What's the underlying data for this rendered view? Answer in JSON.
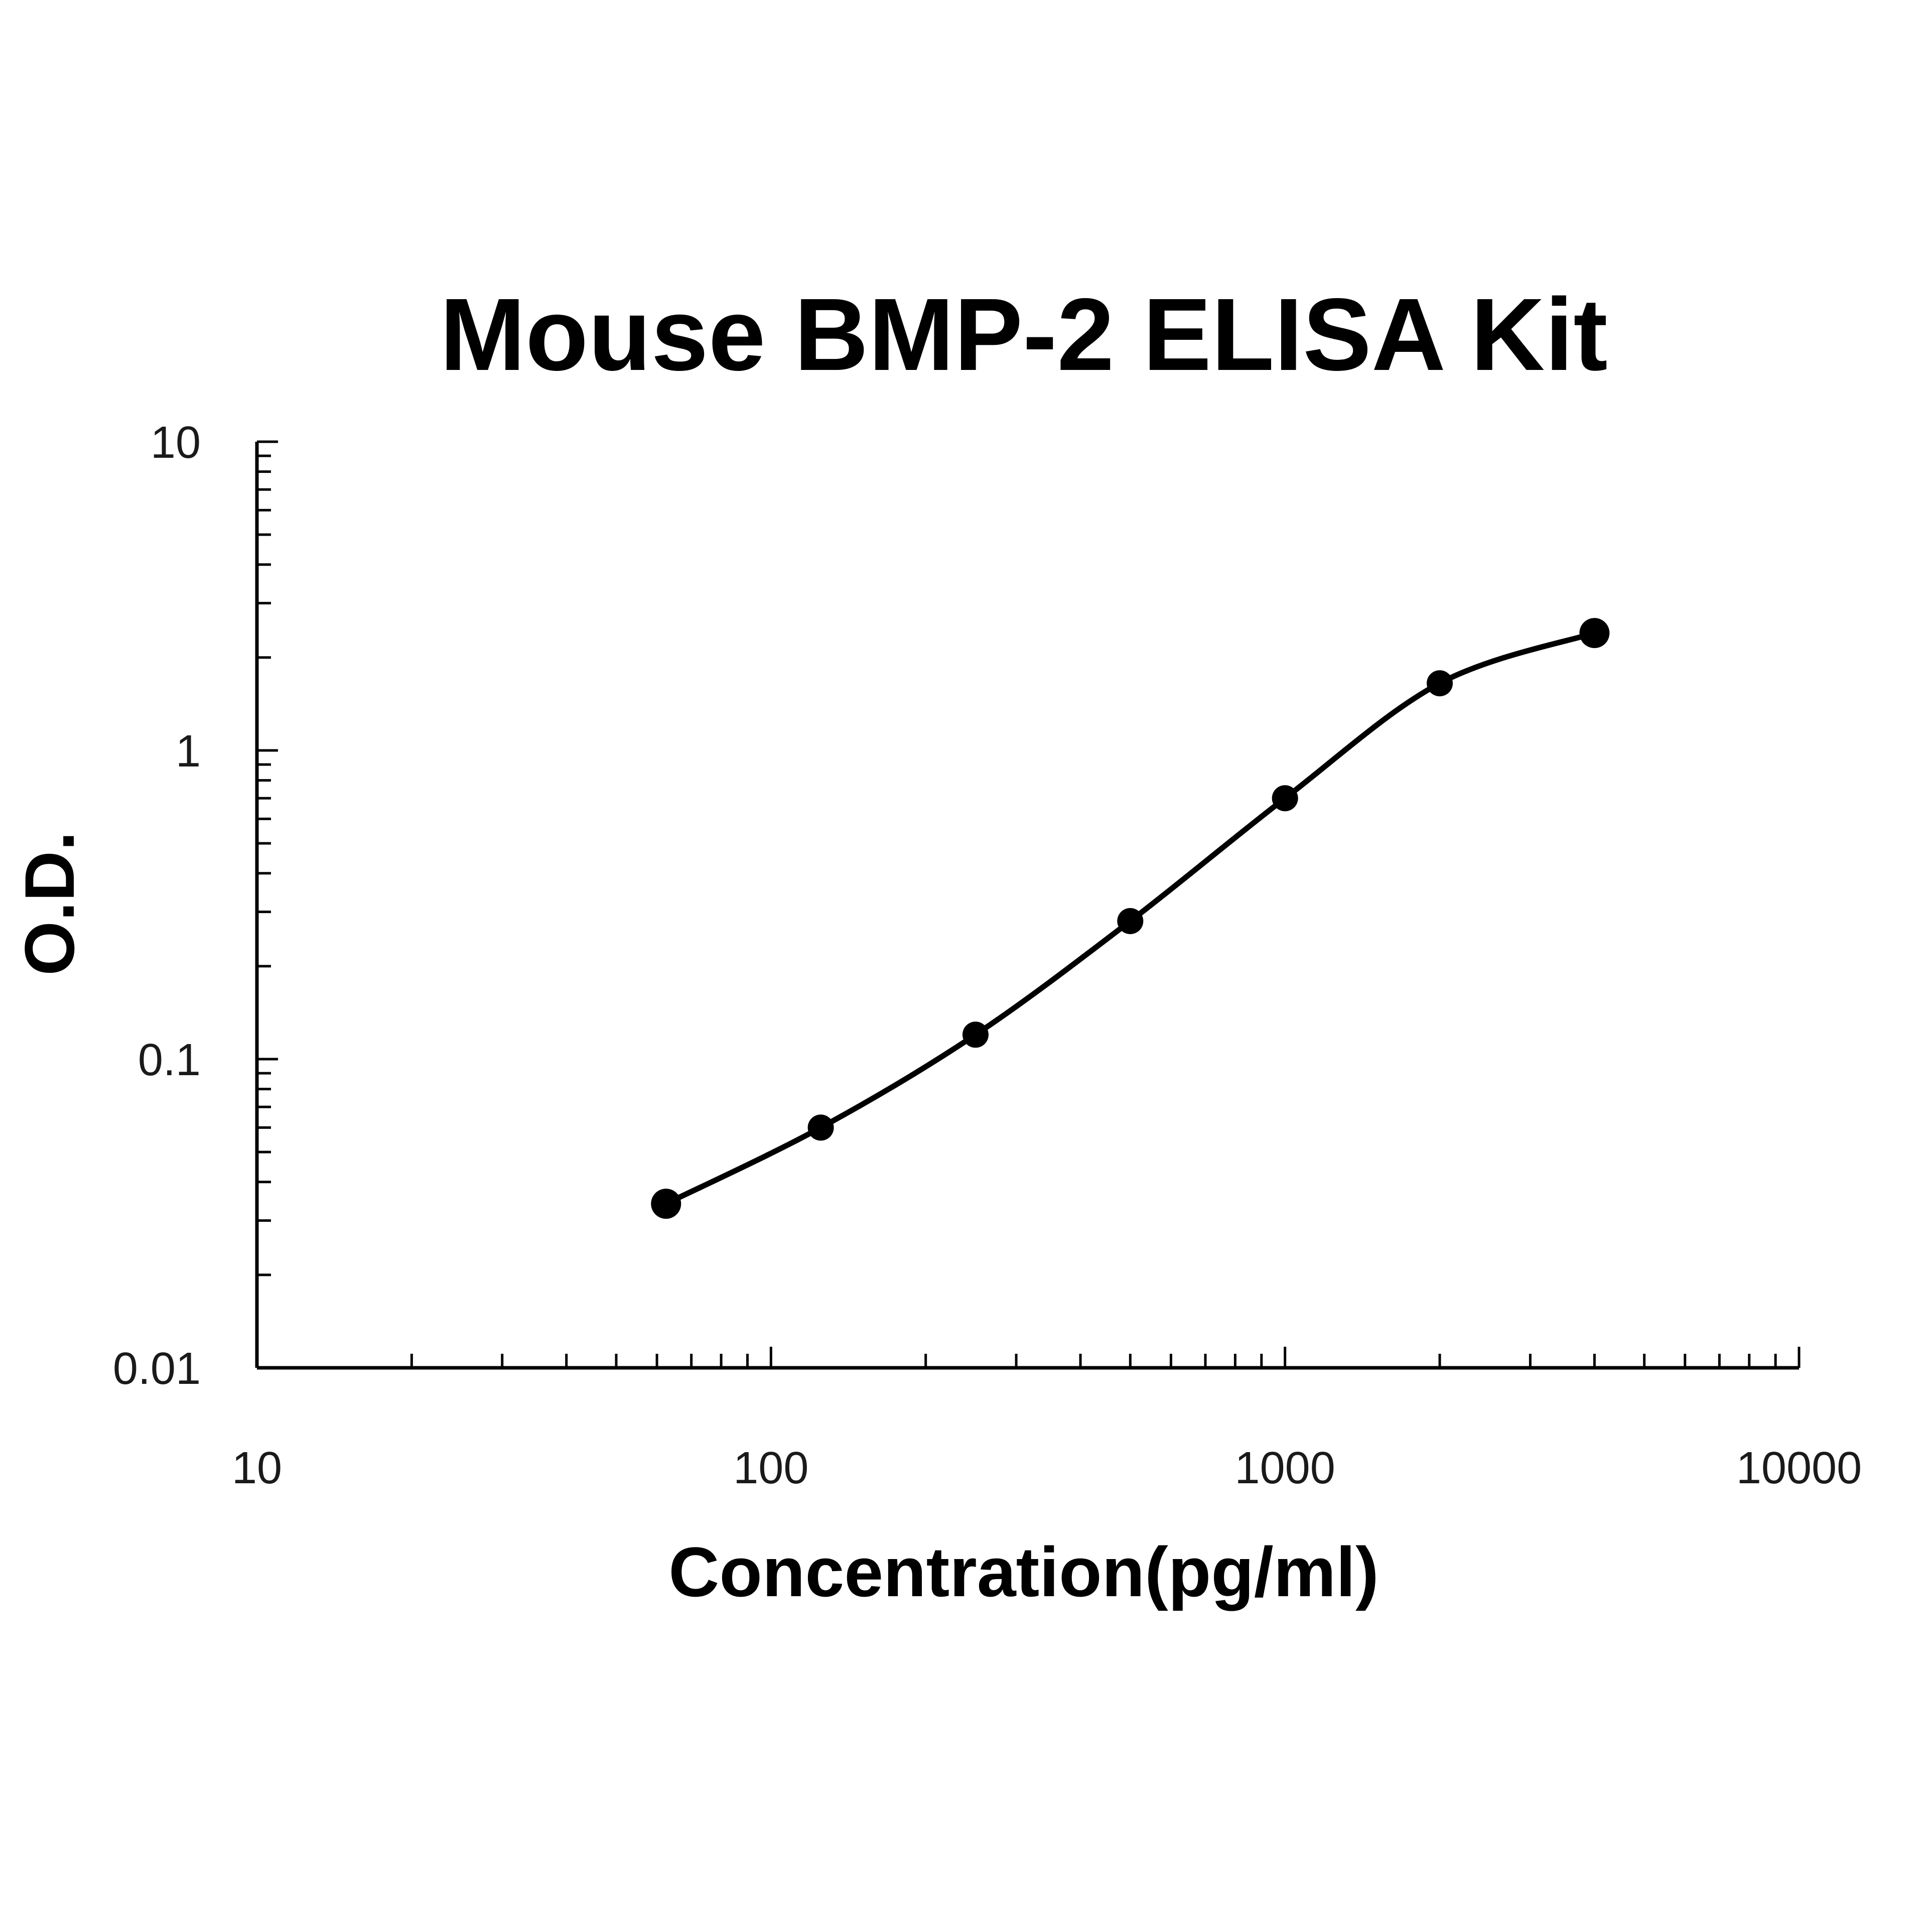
{
  "chart_data": {
    "type": "line",
    "title": "Mouse BMP-2 ELISA Kit",
    "xlabel": "Concentration(pg/ml)",
    "ylabel": "O.D.",
    "x_scale": "log",
    "y_scale": "log",
    "xlim": [
      10,
      10000
    ],
    "ylim": [
      0.01,
      10
    ],
    "x_ticks": [
      "10",
      "100",
      "1000",
      "10000"
    ],
    "y_ticks": [
      "0.01",
      "0.1",
      "1",
      "10"
    ],
    "grid": false,
    "series": [
      {
        "x": [
          62.5,
          125,
          250,
          500,
          1000,
          2000,
          4000
        ],
        "y": [
          0.034,
          0.06,
          0.12,
          0.28,
          0.7,
          1.65,
          2.4
        ]
      }
    ],
    "colors": {
      "line": "#000000",
      "marker": "#000000",
      "text": "#000000",
      "tick_text": "#1a1a1a"
    }
  }
}
